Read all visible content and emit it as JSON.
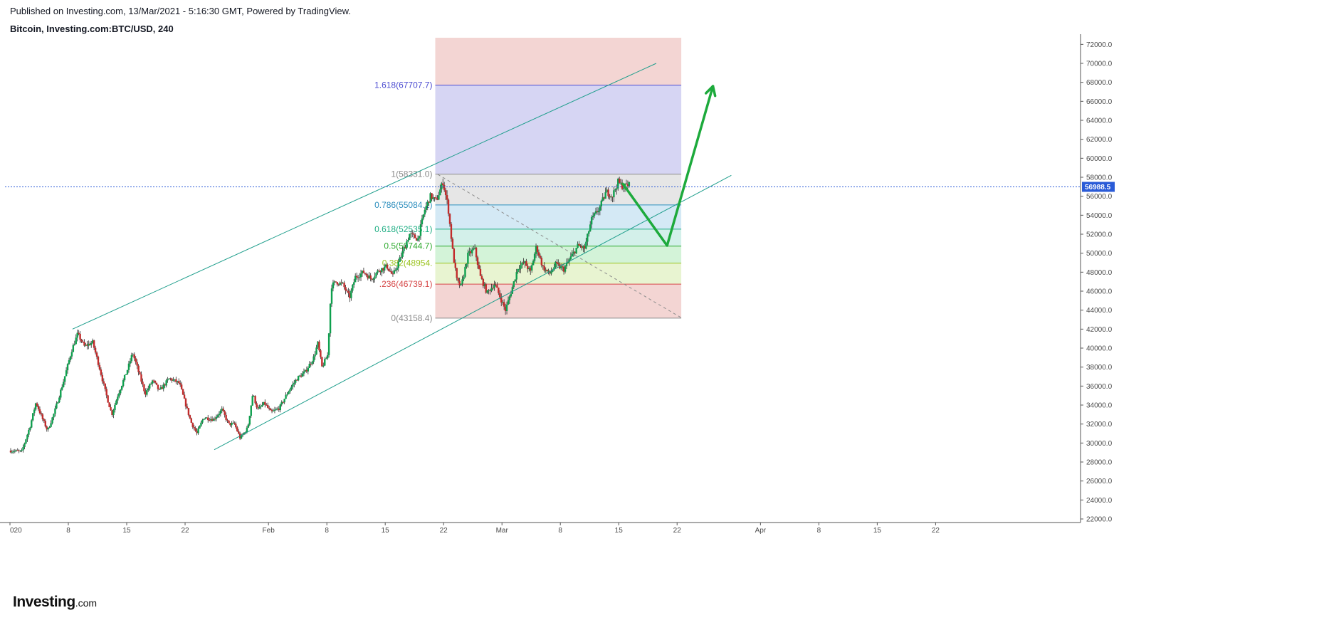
{
  "header": {
    "published": "Published on Investing.com, 13/Mar/2021 - 5:16:30 GMT, Powered by TradingView.",
    "symbol": "Bitcoin, Investing.com:BTC/USD, 240"
  },
  "logo": {
    "main": "Investing",
    "sub": ".com"
  },
  "colors": {
    "up": "#0ea04e",
    "down": "#c22b2b",
    "channel": "#1e9e8c",
    "price_line": "#2a5bd7",
    "arrow": "#1daa3c",
    "fib_top_fill": "#f3d5d3",
    "fib_ext_fill": "#d6d5f3",
    "fib_0786_fill": "#d4e9f5",
    "fib_0618_fill": "#d3f0ea",
    "fib_05_fill": "#d3f3d8",
    "fib_0382_fill": "#e8f4d1",
    "fib_bottom_fill": "#f3d5d3"
  },
  "chart_data": {
    "type": "candlestick",
    "title": "Bitcoin, Investing.com:BTC/USD, 240",
    "ylim": [
      21000,
      73000
    ],
    "y_ticks": [
      "22000.0",
      "24000.0",
      "26000.0",
      "28000.0",
      "30000.0",
      "32000.0",
      "34000.0",
      "36000.0",
      "38000.0",
      "40000.0",
      "42000.0",
      "44000.0",
      "46000.0",
      "48000.0",
      "50000.0",
      "52000.0",
      "54000.0",
      "56000.0",
      "58000.0",
      "60000.0",
      "62000.0",
      "64000.0",
      "66000.0",
      "68000.0",
      "70000.0",
      "72000.0"
    ],
    "x_ticks": [
      "020",
      "8",
      "15",
      "22",
      "Feb",
      "8",
      "15",
      "22",
      "Mar",
      "8",
      "15",
      "22",
      "Apr",
      "8",
      "15",
      "22"
    ],
    "x_tick_days": [
      0,
      7,
      14,
      21,
      31,
      38,
      45,
      52,
      59,
      66,
      73,
      80,
      90,
      97,
      104,
      111
    ],
    "x_range_days": [
      0,
      151
    ],
    "last_price": 56988.5,
    "last_price_label": "56988.5",
    "price_anchors": [
      {
        "day": 0,
        "price": 29200
      },
      {
        "day": 1.5,
        "price": 29100
      },
      {
        "day": 2.5,
        "price": 31800
      },
      {
        "day": 3.2,
        "price": 34300
      },
      {
        "day": 4,
        "price": 32500
      },
      {
        "day": 4.6,
        "price": 31300
      },
      {
        "day": 5.4,
        "price": 33200
      },
      {
        "day": 6.5,
        "price": 36500
      },
      {
        "day": 7.5,
        "price": 39800
      },
      {
        "day": 8.2,
        "price": 41500
      },
      {
        "day": 9,
        "price": 40200
      },
      {
        "day": 10,
        "price": 40600
      },
      {
        "day": 10.8,
        "price": 38000
      },
      {
        "day": 11.5,
        "price": 35500
      },
      {
        "day": 12.3,
        "price": 33000
      },
      {
        "day": 13,
        "price": 35000
      },
      {
        "day": 14.2,
        "price": 37800
      },
      {
        "day": 14.8,
        "price": 39500
      },
      {
        "day": 15.5,
        "price": 37500
      },
      {
        "day": 16.3,
        "price": 35200
      },
      {
        "day": 17.2,
        "price": 36600
      },
      {
        "day": 18,
        "price": 35500
      },
      {
        "day": 19.2,
        "price": 36800
      },
      {
        "day": 20.4,
        "price": 36300
      },
      {
        "day": 21,
        "price": 34500
      },
      {
        "day": 21.8,
        "price": 32200
      },
      {
        "day": 22.5,
        "price": 31000
      },
      {
        "day": 23.3,
        "price": 32700
      },
      {
        "day": 24.5,
        "price": 32500
      },
      {
        "day": 25.5,
        "price": 33500
      },
      {
        "day": 26.3,
        "price": 32000
      },
      {
        "day": 27,
        "price": 32000
      },
      {
        "day": 27.7,
        "price": 30500
      },
      {
        "day": 28.6,
        "price": 31600
      },
      {
        "day": 29.2,
        "price": 35200
      },
      {
        "day": 29.8,
        "price": 33500
      },
      {
        "day": 30.6,
        "price": 34200
      },
      {
        "day": 31.4,
        "price": 33200
      },
      {
        "day": 32.4,
        "price": 33700
      },
      {
        "day": 33.5,
        "price": 35500
      },
      {
        "day": 34.5,
        "price": 36800
      },
      {
        "day": 35.5,
        "price": 37500
      },
      {
        "day": 36.5,
        "price": 39000
      },
      {
        "day": 37,
        "price": 40500
      },
      {
        "day": 37.5,
        "price": 38000
      },
      {
        "day": 38.2,
        "price": 39300
      },
      {
        "day": 38.6,
        "price": 46500
      },
      {
        "day": 39.2,
        "price": 47000
      },
      {
        "day": 40,
        "price": 46700
      },
      {
        "day": 40.8,
        "price": 45300
      },
      {
        "day": 41.5,
        "price": 47500
      },
      {
        "day": 42.5,
        "price": 48000
      },
      {
        "day": 43.4,
        "price": 47300
      },
      {
        "day": 44.3,
        "price": 48200
      },
      {
        "day": 45.3,
        "price": 48600
      },
      {
        "day": 46,
        "price": 47600
      },
      {
        "day": 47,
        "price": 49700
      },
      {
        "day": 48,
        "price": 52000
      },
      {
        "day": 49,
        "price": 51500
      },
      {
        "day": 49.8,
        "price": 54500
      },
      {
        "day": 50.5,
        "price": 56000
      },
      {
        "day": 51.2,
        "price": 55500
      },
      {
        "day": 52,
        "price": 57500
      },
      {
        "day": 52.6,
        "price": 55000
      },
      {
        "day": 53.2,
        "price": 50000
      },
      {
        "day": 53.7,
        "price": 47000
      },
      {
        "day": 54.2,
        "price": 46500
      },
      {
        "day": 55,
        "price": 49800
      },
      {
        "day": 55.8,
        "price": 50500
      },
      {
        "day": 56.5,
        "price": 47500
      },
      {
        "day": 57.3,
        "price": 45800
      },
      {
        "day": 58.2,
        "price": 46800
      },
      {
        "day": 58.8,
        "price": 45500
      },
      {
        "day": 59.5,
        "price": 44000
      },
      {
        "day": 60.2,
        "price": 46000
      },
      {
        "day": 61,
        "price": 48500
      },
      {
        "day": 61.8,
        "price": 49000
      },
      {
        "day": 62.5,
        "price": 48000
      },
      {
        "day": 63.2,
        "price": 50700
      },
      {
        "day": 64,
        "price": 48500
      },
      {
        "day": 64.8,
        "price": 47800
      },
      {
        "day": 65.5,
        "price": 48800
      },
      {
        "day": 66.5,
        "price": 48300
      },
      {
        "day": 67.3,
        "price": 49500
      },
      {
        "day": 68.2,
        "price": 50800
      },
      {
        "day": 69,
        "price": 50500
      },
      {
        "day": 69.8,
        "price": 53500
      },
      {
        "day": 70.8,
        "price": 54800
      },
      {
        "day": 71.6,
        "price": 56500
      },
      {
        "day": 72.3,
        "price": 56000
      },
      {
        "day": 73,
        "price": 57500
      },
      {
        "day": 73.6,
        "price": 57000
      },
      {
        "day": 74.2,
        "price": 57200
      }
    ],
    "fibonacci": {
      "levels": [
        {
          "ratio": 1.618,
          "price": 67707.7,
          "label": "1.618(67707.7)",
          "color": "#4b4bd1"
        },
        {
          "ratio": 1,
          "price": 58331.0,
          "label": "1(58331.0)",
          "color": "#8a8a8a"
        },
        {
          "ratio": 0.786,
          "price": 55084.1,
          "label": "0.786(55084.1)",
          "color": "#2e8fbe"
        },
        {
          "ratio": 0.618,
          "price": 52535.1,
          "label": "0.618(52535.1)",
          "color": "#1fae84"
        },
        {
          "ratio": 0.5,
          "price": 50744.7,
          "label": "0.5(50744.7)",
          "color": "#2eaa2e"
        },
        {
          "ratio": 0.382,
          "price": 48954.0,
          "label": "0.382(48954.",
          "color": "#9ac21c"
        },
        {
          "ratio": 0.236,
          "price": 46739.1,
          "label": ".236(46739.1)",
          "color": "#d64747"
        },
        {
          "ratio": 0,
          "price": 43158.4,
          "label": "0(43158.4)",
          "color": "#8a8a8a"
        }
      ],
      "box_top_price": 72700,
      "day_start": 51.0,
      "day_end": 80.5
    },
    "channel": {
      "upper": [
        {
          "day": 7.5,
          "price": 42000
        },
        {
          "day": 77.5,
          "price": 70000
        }
      ],
      "lower": [
        {
          "day": 24.5,
          "price": 29300
        },
        {
          "day": 86.5,
          "price": 58200
        }
      ]
    },
    "dashed_trend": [
      {
        "day": 51.3,
        "price": 58300
      },
      {
        "day": 80.5,
        "price": 43200
      }
    ],
    "projection_arrow": [
      {
        "day": 73.5,
        "price": 57300
      },
      {
        "day": 76.5,
        "price": 53500
      },
      {
        "day": 78.8,
        "price": 50800
      },
      {
        "day": 79.8,
        "price": 54000
      },
      {
        "day": 82.5,
        "price": 62000
      },
      {
        "day": 84.3,
        "price": 67600
      }
    ]
  }
}
